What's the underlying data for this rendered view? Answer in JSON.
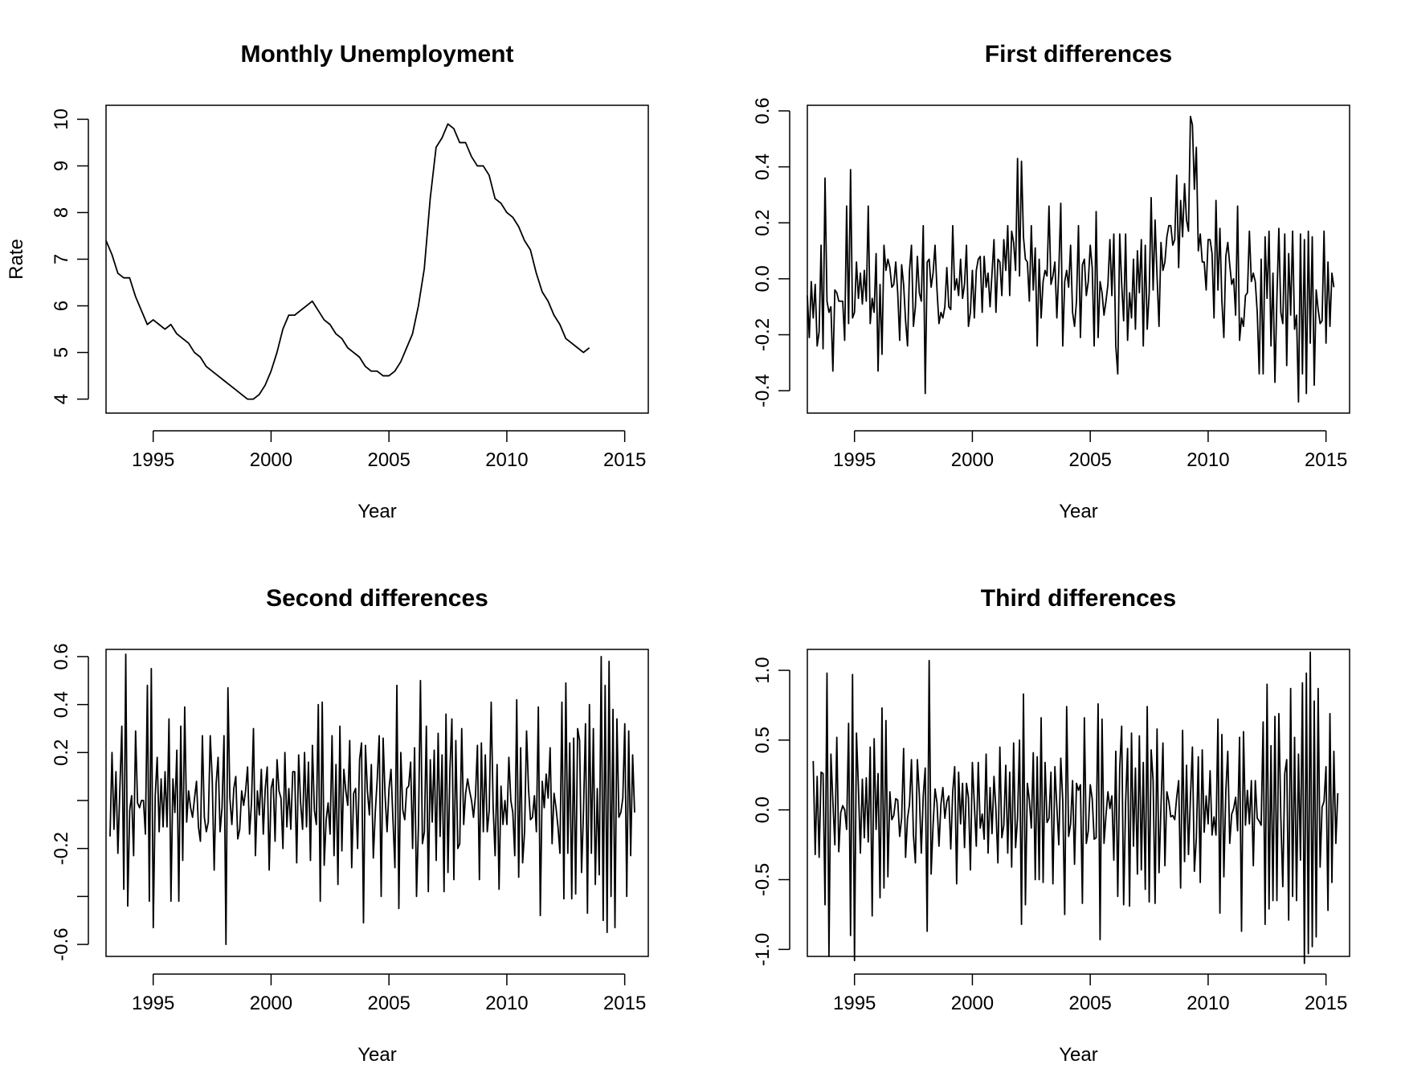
{
  "chart_data": [
    {
      "type": "line",
      "title": "Monthly Unemployment",
      "xlabel": "Year",
      "ylabel": "Rate",
      "xlim": [
        1993,
        2016
      ],
      "ylim": [
        3.7,
        10.3
      ],
      "xticks": [
        1995,
        2000,
        2005,
        2010,
        2015
      ],
      "yticks": [
        4,
        5,
        6,
        7,
        8,
        9,
        10
      ],
      "x_start": 1993.0,
      "x_step": 0.25,
      "series": [
        {
          "values": [
            7.4,
            7.1,
            6.7,
            6.6,
            6.6,
            6.2,
            5.9,
            5.6,
            5.7,
            5.6,
            5.5,
            5.6,
            5.4,
            5.3,
            5.2,
            5.0,
            4.9,
            4.7,
            4.6,
            4.5,
            4.4,
            4.3,
            4.2,
            4.1,
            4.0,
            4.0,
            4.1,
            4.3,
            4.6,
            5.0,
            5.5,
            5.8,
            5.8,
            5.9,
            6.0,
            6.1,
            5.9,
            5.7,
            5.6,
            5.4,
            5.3,
            5.1,
            5.0,
            4.9,
            4.7,
            4.6,
            4.6,
            4.5,
            4.5,
            4.6,
            4.8,
            5.1,
            5.4,
            6.0,
            6.8,
            8.3,
            9.4,
            9.6,
            9.9,
            9.8,
            9.5,
            9.5,
            9.2,
            9.0,
            9.0,
            8.8,
            8.3,
            8.2,
            8.0,
            7.9,
            7.7,
            7.4,
            7.2,
            6.7,
            6.3,
            6.1,
            5.8,
            5.6,
            5.3,
            5.2,
            5.1,
            5.0,
            5.1
          ]
        }
      ],
      "grid": false
    },
    {
      "type": "line",
      "title": "First differences",
      "xlabel": "Year",
      "ylabel": "",
      "xlim": [
        1993,
        2016
      ],
      "ylim": [
        -0.48,
        0.62
      ],
      "xticks": [
        1995,
        2000,
        2005,
        2010,
        2015
      ],
      "yticks": [
        -0.4,
        -0.2,
        0.0,
        0.2,
        0.4,
        0.6
      ],
      "ytick_labels": [
        "-0.4",
        "-0.2",
        "0.0",
        "0.2",
        "0.4",
        "0.6"
      ],
      "x_start": 1993.0,
      "x_step": 0.083333,
      "series": [
        {
          "values": [
            -0.06,
            -0.21,
            -0.01,
            -0.14,
            -0.02,
            -0.24,
            -0.19,
            0.12,
            -0.25,
            0.36,
            -0.08,
            -0.12,
            -0.1,
            -0.33,
            -0.04,
            -0.05,
            -0.08,
            -0.08,
            -0.08,
            -0.22,
            0.26,
            -0.16,
            0.39,
            -0.14,
            -0.12,
            0.06,
            -0.07,
            0.02,
            -0.09,
            0.03,
            -0.08,
            0.26,
            -0.16,
            -0.07,
            -0.12,
            0.09,
            -0.33,
            -0.02,
            -0.27,
            0.12,
            0.03,
            0.07,
            0.04,
            -0.03,
            -0.02,
            0.06,
            -0.05,
            -0.22,
            0.05,
            -0.02,
            -0.15,
            -0.24,
            0.03,
            0.12,
            -0.17,
            -0.1,
            0.08,
            -0.05,
            -0.08,
            0.19,
            -0.41,
            0.06,
            0.07,
            -0.03,
            0.02,
            0.12,
            -0.04,
            -0.16,
            -0.12,
            -0.14,
            -0.1,
            0.04,
            -0.1,
            -0.11,
            0.19,
            -0.04,
            0.0,
            -0.06,
            0.07,
            -0.07,
            -0.02,
            0.12,
            -0.17,
            -0.12,
            0.03,
            -0.14,
            0.03,
            0.07,
            0.08,
            -0.12,
            0.08,
            -0.03,
            0.02,
            -0.1,
            0.02,
            0.14,
            -0.12,
            0.07,
            0.06,
            -0.06,
            0.14,
            0.03,
            0.19,
            -0.06,
            0.17,
            0.13,
            0.03,
            0.43,
            0.01,
            0.42,
            0.15,
            0.07,
            0.06,
            -0.08,
            0.19,
            -0.04,
            0.11,
            -0.24,
            0.07,
            -0.14,
            -0.01,
            0.03,
            0.01,
            0.26,
            -0.02,
            0.01,
            0.06,
            -0.14,
            0.03,
            0.27,
            -0.24,
            -0.01,
            0.03,
            -0.03,
            0.12,
            -0.12,
            -0.17,
            -0.08,
            0.19,
            -0.21,
            0.05,
            0.07,
            -0.06,
            -0.01,
            0.12,
            0.04,
            -0.24,
            0.24,
            -0.21,
            -0.01,
            -0.05,
            -0.13,
            -0.08,
            -0.02,
            0.14,
            -0.06,
            0.16,
            -0.24,
            -0.34,
            0.16,
            -0.02,
            -0.15,
            0.16,
            -0.22,
            -0.05,
            -0.14,
            0.07,
            -0.18,
            0.1,
            -0.05,
            0.14,
            -0.24,
            0.12,
            -0.18,
            -0.05,
            0.29,
            -0.04,
            0.21,
            0.01,
            -0.17,
            0.13,
            0.03,
            0.06,
            0.15,
            0.19,
            0.19,
            0.12,
            0.14,
            0.37,
            0.04,
            0.28,
            0.15,
            0.34,
            0.21,
            0.17,
            0.58,
            0.55,
            0.32,
            0.47,
            0.1,
            0.16,
            0.06,
            0.06,
            -0.04,
            0.14,
            0.14,
            0.09,
            -0.14,
            0.28,
            -0.04,
            0.18,
            -0.08,
            -0.21,
            0.08,
            0.13,
            0.05,
            -0.02,
            0.0,
            -0.13,
            0.26,
            -0.22,
            -0.14,
            -0.17,
            -0.06,
            -0.05,
            0.17,
            -0.01,
            0.02,
            -0.01,
            -0.12,
            -0.34,
            0.07,
            -0.34,
            0.15,
            -0.07,
            0.17,
            -0.24,
            0.02,
            -0.37,
            -0.07,
            0.18,
            -0.12,
            -0.16,
            0.16,
            -0.31,
            0.09,
            -0.13,
            0.17,
            -0.18,
            -0.13,
            -0.44,
            0.16,
            -0.34,
            0.14,
            -0.41,
            0.17,
            -0.23,
            0.15,
            -0.38,
            -0.04,
            -0.11,
            -0.16,
            -0.15,
            0.17,
            -0.23,
            0.06,
            -0.17,
            0.02,
            -0.03
          ]
        }
      ],
      "grid": false
    },
    {
      "type": "line",
      "title": "Second differences",
      "xlabel": "Year",
      "ylabel": "",
      "xlim": [
        1993,
        2016
      ],
      "ylim": [
        -0.65,
        0.63
      ],
      "xticks": [
        1995,
        2000,
        2005,
        2010,
        2015
      ],
      "yticks": [
        -0.6,
        -0.4,
        -0.2,
        0.0,
        0.2,
        0.4,
        0.6
      ],
      "ytick_labels": [
        "-0.6",
        "",
        "-0.2",
        "",
        "0.2",
        "0.4",
        "0.6"
      ],
      "x_start": 1993.17,
      "x_step": 0.083333,
      "series": [
        {
          "values": [
            -0.15,
            0.2,
            -0.12,
            0.12,
            -0.22,
            0.05,
            0.31,
            -0.37,
            0.61,
            -0.44,
            -0.04,
            0.02,
            -0.23,
            0.29,
            -0.01,
            -0.03,
            0.0,
            0.0,
            -0.14,
            0.48,
            -0.42,
            0.55,
            -0.53,
            0.02,
            0.18,
            -0.13,
            0.09,
            -0.11,
            0.12,
            -0.11,
            0.34,
            -0.42,
            0.09,
            -0.05,
            0.21,
            -0.42,
            0.31,
            -0.25,
            0.39,
            -0.09,
            0.04,
            -0.03,
            -0.07,
            0.01,
            0.08,
            -0.11,
            -0.17,
            0.27,
            -0.07,
            -0.13,
            -0.09,
            0.27,
            0.09,
            -0.29,
            0.07,
            0.18,
            -0.13,
            -0.03,
            0.27,
            -0.6,
            0.47,
            0.01,
            -0.1,
            0.05,
            0.1,
            -0.16,
            -0.12,
            0.04,
            -0.02,
            0.04,
            0.14,
            -0.14,
            -0.01,
            0.3,
            -0.23,
            0.04,
            -0.06,
            0.13,
            -0.14,
            0.05,
            0.14,
            -0.29,
            0.05,
            0.09,
            -0.17,
            0.17,
            0.04,
            0.01,
            -0.2,
            0.2,
            -0.11,
            0.05,
            -0.12,
            0.12,
            0.12,
            -0.26,
            0.19,
            -0.01,
            -0.12,
            0.2,
            -0.11,
            0.16,
            -0.25,
            0.23,
            -0.04,
            -0.1,
            0.4,
            -0.42,
            0.41,
            -0.27,
            -0.08,
            -0.01,
            -0.14,
            0.27,
            -0.23,
            0.15,
            -0.35,
            0.31,
            -0.21,
            0.13,
            0.04,
            -0.02,
            0.25,
            -0.28,
            0.03,
            0.05,
            -0.2,
            0.17,
            0.24,
            -0.51,
            0.23,
            0.04,
            -0.06,
            0.15,
            -0.24,
            -0.05,
            0.09,
            0.27,
            -0.4,
            0.26,
            0.02,
            -0.13,
            0.05,
            0.13,
            -0.08,
            -0.28,
            0.48,
            -0.45,
            0.2,
            -0.04,
            -0.08,
            0.05,
            0.06,
            0.16,
            -0.2,
            0.22,
            -0.4,
            -0.1,
            0.5,
            -0.18,
            -0.13,
            0.31,
            -0.38,
            0.17,
            -0.09,
            0.21,
            -0.25,
            0.28,
            -0.15,
            0.19,
            -0.38,
            0.36,
            -0.3,
            0.13,
            0.34,
            -0.33,
            0.25,
            -0.2,
            -0.18,
            0.3,
            -0.1,
            0.03,
            0.09,
            0.04,
            0.0,
            -0.07,
            0.02,
            0.23,
            -0.33,
            0.24,
            -0.13,
            0.19,
            -0.13,
            -0.04,
            0.41,
            -0.03,
            -0.23,
            0.15,
            -0.37,
            0.06,
            -0.1,
            0.0,
            -0.1,
            0.18,
            0.0,
            -0.05,
            -0.23,
            0.42,
            -0.32,
            0.22,
            -0.26,
            -0.13,
            0.29,
            0.05,
            -0.08,
            -0.07,
            0.02,
            -0.13,
            0.39,
            -0.48,
            0.08,
            -0.03,
            0.11,
            0.01,
            0.22,
            -0.18,
            0.03,
            -0.03,
            -0.11,
            -0.22,
            0.41,
            -0.41,
            0.49,
            -0.22,
            0.24,
            -0.41,
            0.26,
            -0.39,
            0.3,
            0.25,
            -0.3,
            -0.04,
            0.32,
            -0.47,
            0.4,
            -0.22,
            0.3,
            -0.35,
            0.05,
            -0.31,
            0.6,
            -0.5,
            0.48,
            -0.55,
            0.58,
            -0.4,
            0.38,
            -0.53,
            0.34,
            -0.07,
            -0.05,
            0.01,
            0.32,
            -0.4,
            0.29,
            -0.23,
            0.19,
            -0.05
          ]
        }
      ],
      "grid": false
    },
    {
      "type": "line",
      "title": "Third differences",
      "xlabel": "Year",
      "ylabel": "",
      "xlim": [
        1993,
        2016
      ],
      "ylim": [
        -1.05,
        1.15
      ],
      "xticks": [
        1995,
        2000,
        2005,
        2010,
        2015
      ],
      "yticks": [
        -1.0,
        -0.5,
        0.0,
        0.5,
        1.0
      ],
      "ytick_labels": [
        "-1.0",
        "-0.5",
        "0.0",
        "0.5",
        "1.0"
      ],
      "x_start": 1993.25,
      "x_step": 0.083333,
      "series": [
        {
          "values": [
            0.35,
            -0.32,
            0.24,
            -0.34,
            0.27,
            0.26,
            -0.68,
            0.98,
            -1.05,
            0.4,
            0.06,
            -0.25,
            0.52,
            -0.3,
            -0.02,
            0.03,
            0.0,
            -0.14,
            0.62,
            -0.9,
            0.97,
            -1.08,
            0.55,
            0.16,
            -0.31,
            0.22,
            -0.2,
            0.23,
            -0.23,
            0.45,
            -0.76,
            0.51,
            -0.14,
            0.26,
            -0.63,
            0.73,
            -0.56,
            0.64,
            -0.48,
            0.13,
            -0.07,
            -0.04,
            0.08,
            0.07,
            -0.19,
            -0.06,
            0.44,
            -0.34,
            -0.06,
            0.04,
            0.36,
            -0.18,
            -0.38,
            0.36,
            0.11,
            -0.31,
            0.1,
            0.3,
            -0.87,
            1.07,
            -0.46,
            -0.11,
            0.15,
            0.05,
            -0.26,
            0.04,
            0.16,
            -0.06,
            0.06,
            0.1,
            -0.28,
            0.13,
            0.31,
            -0.53,
            0.27,
            -0.1,
            0.19,
            -0.27,
            0.19,
            0.09,
            -0.43,
            0.34,
            0.04,
            -0.26,
            0.34,
            -0.13,
            -0.03,
            -0.21,
            0.4,
            -0.31,
            0.16,
            -0.17,
            0.24,
            0.0,
            -0.38,
            0.45,
            -0.2,
            -0.11,
            0.32,
            -0.31,
            0.27,
            -0.41,
            0.48,
            -0.27,
            -0.06,
            0.5,
            -0.82,
            0.83,
            -0.68,
            0.19,
            0.07,
            -0.13,
            0.41,
            -0.5,
            0.38,
            -0.5,
            0.66,
            -0.52,
            0.34,
            -0.09,
            -0.06,
            0.27,
            -0.53,
            0.31,
            0.02,
            -0.25,
            0.37,
            0.07,
            -0.75,
            0.74,
            -0.19,
            -0.1,
            0.21,
            -0.39,
            0.19,
            0.14,
            0.18,
            -0.67,
            0.66,
            -0.24,
            -0.15,
            0.18,
            0.08,
            -0.21,
            -0.2,
            0.76,
            -0.93,
            0.65,
            -0.24,
            -0.04,
            0.13,
            0.01,
            0.1,
            -0.36,
            0.42,
            -0.62,
            0.3,
            0.6,
            -0.68,
            0.05,
            0.44,
            -0.69,
            0.55,
            -0.26,
            0.3,
            -0.46,
            0.53,
            -0.43,
            0.34,
            -0.57,
            0.74,
            -0.66,
            0.43,
            0.21,
            -0.67,
            0.58,
            -0.45,
            0.02,
            0.48,
            -0.4,
            0.13,
            0.06,
            -0.05,
            -0.04,
            -0.07,
            0.09,
            0.21,
            -0.56,
            0.57,
            -0.37,
            0.32,
            -0.32,
            0.09,
            0.45,
            -0.44,
            -0.2,
            0.38,
            -0.52,
            0.43,
            -0.16,
            0.1,
            -0.1,
            0.28,
            -0.18,
            -0.05,
            -0.18,
            0.65,
            -0.74,
            0.54,
            -0.48,
            0.13,
            0.42,
            -0.24,
            -0.03,
            0.01,
            0.09,
            -0.15,
            0.52,
            -0.87,
            0.56,
            -0.11,
            0.14,
            -0.1,
            0.21,
            -0.4,
            0.21,
            -0.06,
            -0.08,
            -0.11,
            0.63,
            -0.82,
            0.9,
            -0.71,
            0.46,
            -0.65,
            0.67,
            -0.65,
            0.69,
            -0.05,
            -0.55,
            0.26,
            0.36,
            -0.79,
            0.87,
            -0.62,
            0.52,
            -0.65,
            0.4,
            -0.36,
            0.91,
            -1.1,
            0.98,
            -1.03,
            1.13,
            -0.98,
            0.78,
            -0.91,
            0.87,
            -0.41,
            0.02,
            0.06,
            0.31,
            -0.72,
            0.69,
            -0.52,
            0.42,
            -0.24,
            0.12
          ]
        }
      ],
      "grid": false
    }
  ]
}
